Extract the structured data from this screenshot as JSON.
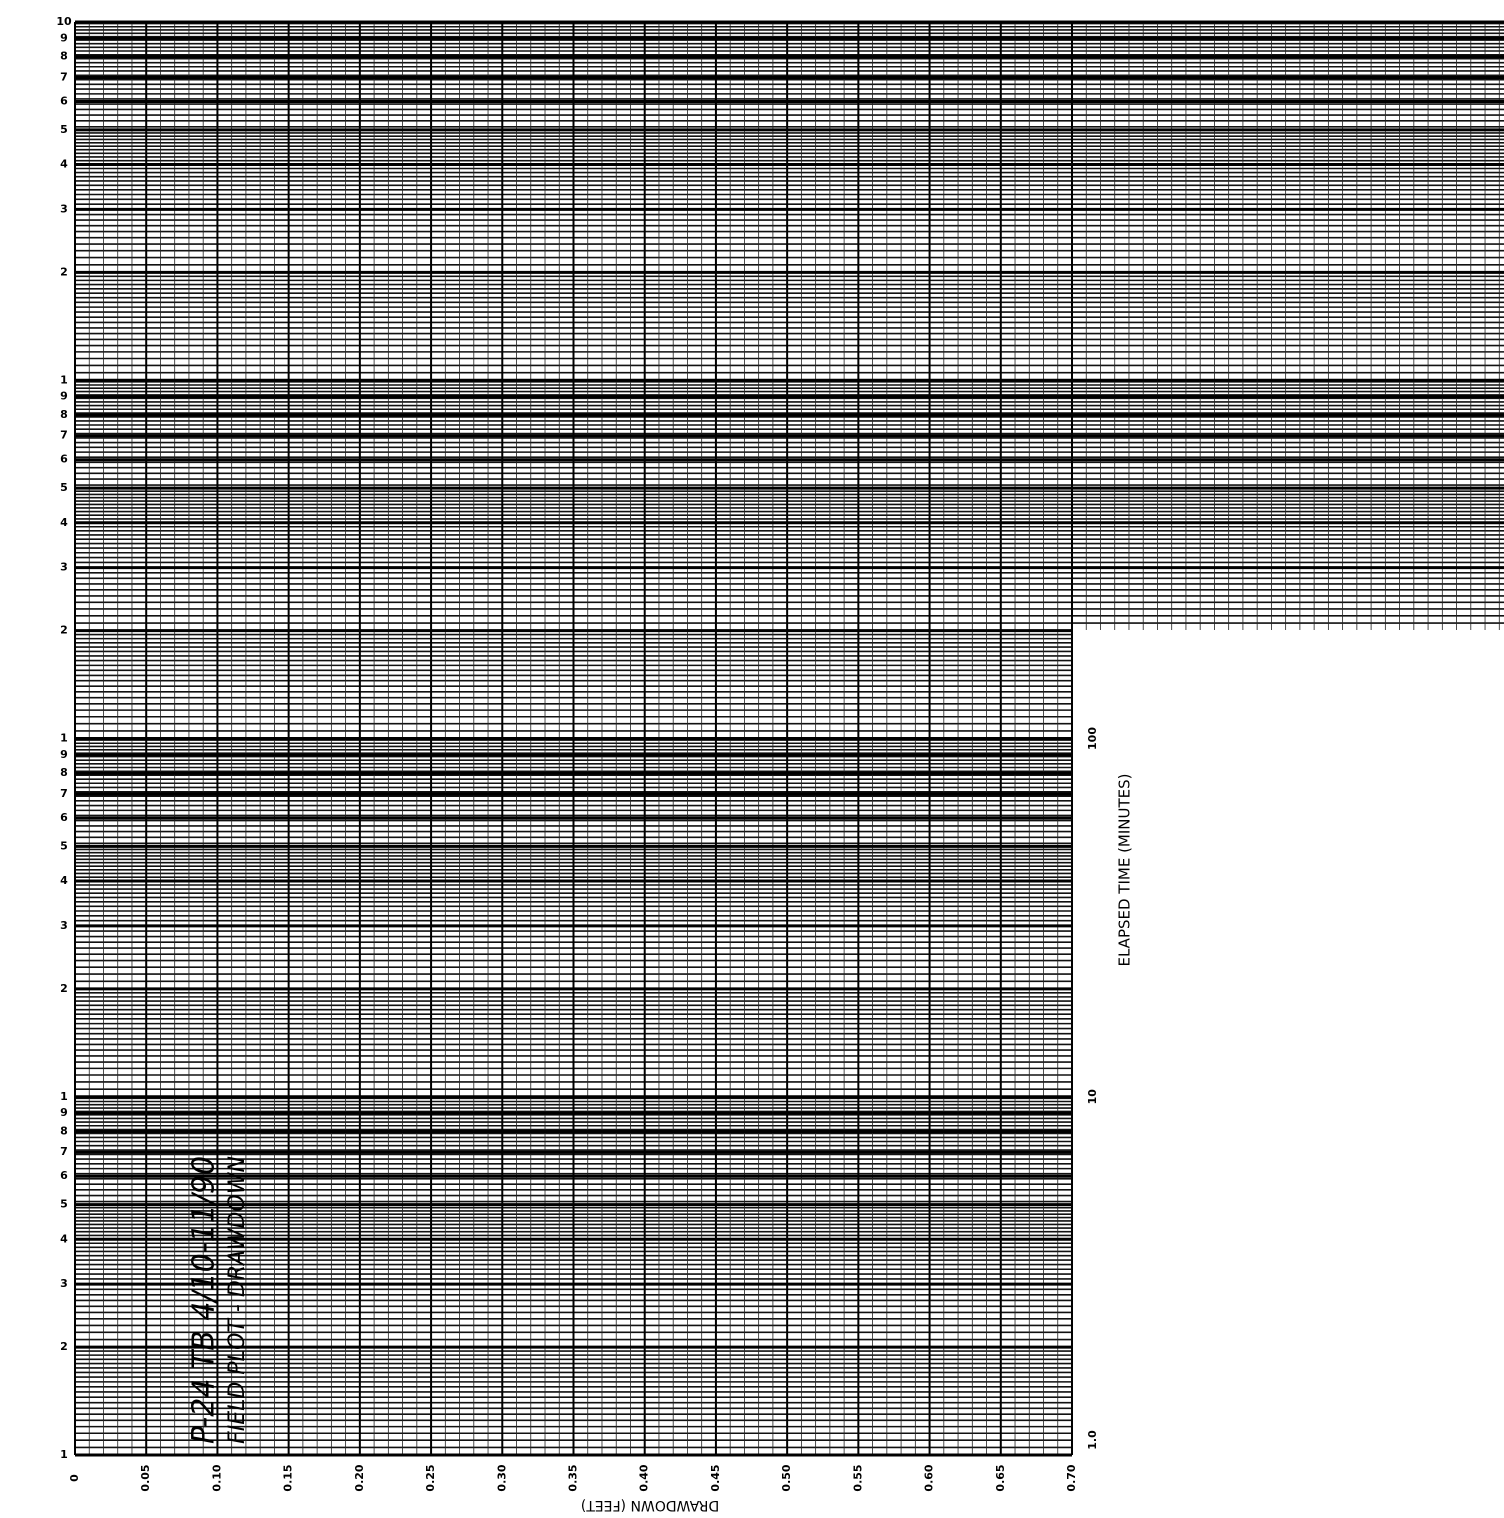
{
  "chart_data": {
    "type": "scatter",
    "title": "P-24 TB 4/10-11/90",
    "subtitle": "FIELD PLOT - DRAWDOWN",
    "x_label": "DRAWDOWN (FEET)",
    "y_label": "ELAPSED TIME (MINUTES)",
    "y_log": true,
    "grid": true,
    "xlim": [
      0,
      0.7
    ],
    "xticks": [
      0,
      0.05,
      {
        "value": 0.1,
        "label": "0.10"
      },
      0.15,
      {
        "value": 0.2,
        "label": "0.20"
      },
      0.25,
      {
        "value": 0.3,
        "label": "0.30"
      },
      0.35,
      {
        "value": 0.4,
        "label": "0.40"
      },
      0.45,
      {
        "value": 0.5,
        "label": "0.50"
      },
      0.55,
      {
        "value": 0.6,
        "label": "0.60"
      },
      0.65,
      {
        "value": 0.7,
        "label": "0.70"
      }
    ],
    "ylim": [
      1,
      10000
    ],
    "yticks": [
      1,
      2,
      3,
      4,
      5,
      6,
      7,
      8,
      9,
      {
        "value": 10,
        "label": "1"
      },
      {
        "value": 20,
        "label": "2"
      },
      {
        "value": 30,
        "label": "3"
      },
      {
        "value": 40,
        "label": "4"
      },
      {
        "value": 50,
        "label": "5"
      },
      {
        "value": 60,
        "label": "6"
      },
      {
        "value": 70,
        "label": "7"
      },
      {
        "value": 80,
        "label": "8"
      },
      {
        "value": 90,
        "label": "9"
      },
      {
        "value": 100,
        "label": "1"
      },
      {
        "value": 200,
        "label": "2"
      },
      {
        "value": 300,
        "label": "3"
      },
      {
        "value": 400,
        "label": "4"
      },
      {
        "value": 500,
        "label": "5"
      },
      {
        "value": 600,
        "label": "6"
      },
      {
        "value": 700,
        "label": "7"
      },
      {
        "value": 800,
        "label": "8"
      },
      {
        "value": 900,
        "label": "9"
      },
      {
        "value": 1000,
        "label": "1"
      },
      {
        "value": 2000,
        "label": "2"
      },
      {
        "value": 3000,
        "label": "3"
      },
      {
        "value": 4000,
        "label": "4"
      },
      {
        "value": 5000,
        "label": "5"
      },
      {
        "value": 6000,
        "label": "6"
      },
      {
        "value": 7000,
        "label": "7"
      },
      {
        "value": 8000,
        "label": "8"
      },
      {
        "value": 9000,
        "label": "9"
      },
      {
        "value": 10000,
        "label": "10"
      }
    ],
    "y2lim": [
      1,
      10000
    ],
    "y2ticks": [
      {
        "value": 1,
        "label": "1.0"
      },
      10,
      100
    ]
  }
}
